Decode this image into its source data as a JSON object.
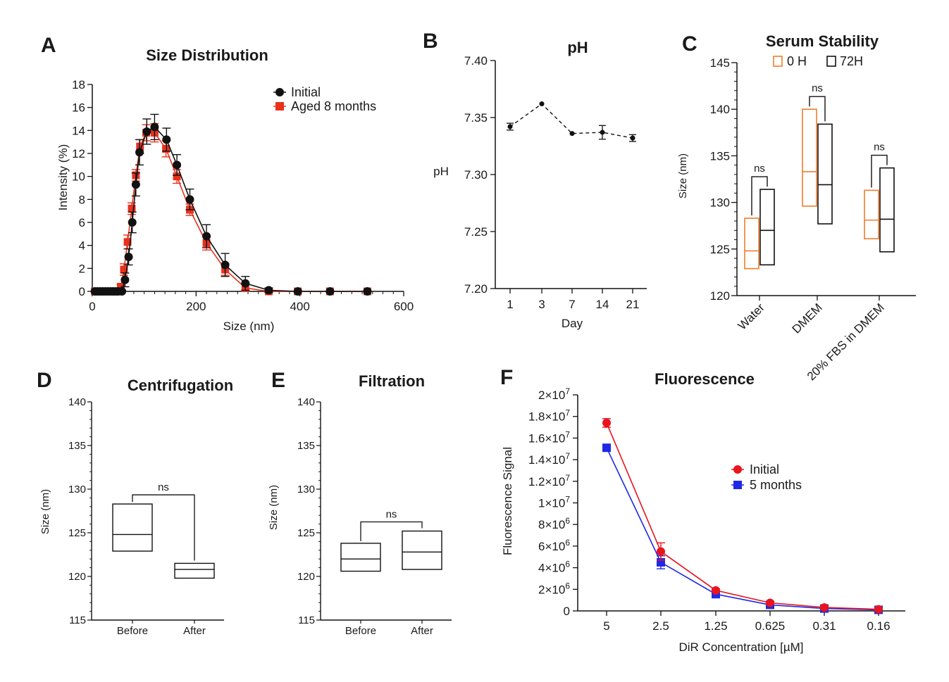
{
  "panels": {
    "A": {
      "letter": "A",
      "title": "Size Distribution",
      "xlabel": "Size (nm)",
      "ylabel": "Intensity (%)"
    },
    "B": {
      "letter": "B",
      "title": "pH",
      "xlabel": "Day",
      "ylabel": "pH"
    },
    "C": {
      "letter": "C",
      "title": "Serum Stability",
      "xlabel": "",
      "ylabel": "Size (nm)"
    },
    "D": {
      "letter": "D",
      "title": "Centrifugation",
      "xlabel": "",
      "ylabel": "Size (nm)"
    },
    "E": {
      "letter": "E",
      "title": "Filtration",
      "xlabel": "",
      "ylabel": "Size (nm)"
    },
    "F": {
      "letter": "F",
      "title": "Fluorescence",
      "xlabel": "DiR Concentration [µM]",
      "ylabel": "Fluorescence Signal"
    }
  },
  "colors": {
    "black": "#111111",
    "red": "#e8321e",
    "orange": "#f07d2c",
    "fl_red": "#e8141e",
    "fl_blue": "#1e28e6"
  },
  "chart_data": [
    {
      "id": "A",
      "type": "line",
      "title": "Size Distribution",
      "xlabel": "Size (nm)",
      "ylabel": "Intensity (%)",
      "xlim": [
        0,
        600
      ],
      "ylim": [
        0,
        18
      ],
      "xticks": [
        0,
        200,
        400,
        600
      ],
      "yticks": [
        0,
        2,
        4,
        6,
        8,
        10,
        12,
        14,
        16,
        18
      ],
      "legend": "top-right",
      "series": [
        {
          "name": "Initial",
          "marker": "circle",
          "x": [
            5,
            10,
            15,
            20,
            25,
            30,
            35,
            40,
            45,
            50,
            57,
            63,
            70,
            77,
            84,
            91,
            105,
            120,
            143,
            163,
            188,
            220,
            256,
            295,
            340,
            396,
            458,
            530
          ],
          "y": [
            0,
            0,
            0,
            0,
            0,
            0,
            0,
            0,
            0,
            0,
            0,
            1,
            3,
            6,
            9.3,
            12.1,
            13.9,
            14.3,
            13.2,
            11,
            8,
            4.8,
            2.3,
            0.7,
            0.1,
            0,
            0,
            0
          ],
          "err": [
            0,
            0,
            0,
            0,
            0,
            0,
            0,
            0,
            0,
            0,
            0.1,
            0.6,
            0.7,
            0.9,
            1,
            1.1,
            1.1,
            1.1,
            1,
            0.9,
            0.9,
            1,
            1,
            0.6,
            0.2,
            0,
            0,
            0
          ]
        },
        {
          "name": "Aged 8 months",
          "marker": "square",
          "x": [
            5,
            10,
            15,
            20,
            25,
            30,
            35,
            40,
            45,
            50,
            55,
            61,
            68,
            76,
            84,
            92,
            104,
            120,
            142,
            163,
            188,
            220,
            256,
            295,
            340,
            396,
            458,
            530
          ],
          "y": [
            0,
            0,
            0,
            0,
            0,
            0,
            0,
            0,
            0,
            0,
            0.4,
            1.9,
            4.3,
            7.2,
            10.1,
            12.6,
            13.8,
            13.8,
            12.4,
            10,
            7.1,
            4.2,
            1.9,
            0.3,
            0,
            0,
            0,
            0
          ],
          "err": [
            0,
            0,
            0,
            0,
            0,
            0,
            0,
            0,
            0,
            0,
            0.2,
            0.5,
            0.6,
            0.5,
            0.5,
            0.6,
            0.7,
            0.8,
            0.7,
            0.6,
            0.5,
            0.6,
            0.5,
            0.3,
            0,
            0,
            0,
            0
          ]
        }
      ]
    },
    {
      "id": "B",
      "type": "line",
      "title": "pH",
      "xlabel": "Day",
      "ylabel": "pH",
      "categories": [
        "1",
        "3",
        "7",
        "14",
        "21"
      ],
      "ylim": [
        7.2,
        7.4
      ],
      "yticks": [
        "7.20",
        "7.25",
        "7.30",
        "7.35",
        "7.40"
      ],
      "series": [
        {
          "values": [
            7.342,
            7.362,
            7.336,
            7.337,
            7.332
          ],
          "err": [
            0.003,
            0,
            0,
            0.006,
            0.003
          ]
        }
      ]
    },
    {
      "id": "C",
      "type": "box",
      "title": "Serum Stability",
      "ylabel": "Size (nm)",
      "categories": [
        "Water",
        "DMEM",
        "20% FBS in DMEM"
      ],
      "ylim": [
        120,
        145
      ],
      "yticks": [
        120,
        125,
        130,
        135,
        140,
        145
      ],
      "legend": "top",
      "series": [
        {
          "name": "0 H",
          "color": "orange",
          "boxes": [
            {
              "low": 122.9,
              "mid": 124.8,
              "high": 128.3
            },
            {
              "low": 129.6,
              "mid": 133.3,
              "high": 140.0
            },
            {
              "low": 126.1,
              "mid": 128.1,
              "high": 131.3
            }
          ]
        },
        {
          "name": "72H",
          "color": "black",
          "boxes": [
            {
              "low": 123.3,
              "mid": 127.0,
              "high": 131.4
            },
            {
              "low": 127.7,
              "mid": 131.9,
              "high": 138.4
            },
            {
              "low": 124.7,
              "mid": 128.2,
              "high": 133.7
            }
          ]
        }
      ],
      "brackets": [
        {
          "label": "ns"
        },
        {
          "label": "ns"
        },
        {
          "label": "ns"
        }
      ]
    },
    {
      "id": "D",
      "type": "box",
      "title": "Centrifugation",
      "ylabel": "Size (nm)",
      "categories": [
        "Before",
        "After"
      ],
      "ylim": [
        115,
        140
      ],
      "yticks": [
        115,
        120,
        125,
        130,
        135,
        140
      ],
      "boxes": [
        {
          "low": 122.9,
          "mid": 124.8,
          "high": 128.3
        },
        {
          "low": 119.8,
          "mid": 120.8,
          "high": 121.5
        }
      ],
      "brackets": [
        {
          "label": "ns"
        }
      ]
    },
    {
      "id": "E",
      "type": "box",
      "title": "Filtration",
      "ylabel": "Size (nm)",
      "categories": [
        "Before",
        "After"
      ],
      "ylim": [
        115,
        140
      ],
      "yticks": [
        115,
        120,
        125,
        130,
        135,
        140
      ],
      "boxes": [
        {
          "low": 120.6,
          "mid": 122.0,
          "high": 123.8
        },
        {
          "low": 120.8,
          "mid": 122.8,
          "high": 125.2
        }
      ],
      "brackets": [
        {
          "label": "ns"
        }
      ]
    },
    {
      "id": "F",
      "type": "line",
      "title": "Fluorescence",
      "xlabel": "DiR Concentration [µM]",
      "ylabel": "Fluorescence Signal",
      "categories": [
        "5",
        "2.5",
        "1.25",
        "0.625",
        "0.31",
        "0.16"
      ],
      "ylim": [
        0,
        20000000
      ],
      "ytick_labels": [
        {
          "v": 0,
          "m": "0",
          "e": ""
        },
        {
          "v": 2000000,
          "m": "2×10",
          "e": "6"
        },
        {
          "v": 4000000,
          "m": "4×10",
          "e": "6"
        },
        {
          "v": 6000000,
          "m": "6×10",
          "e": "6"
        },
        {
          "v": 8000000,
          "m": "8×10",
          "e": "6"
        },
        {
          "v": 10000000,
          "m": "1×10",
          "e": "7"
        },
        {
          "v": 12000000,
          "m": "1.2×10",
          "e": "7"
        },
        {
          "v": 14000000,
          "m": "1.4×10",
          "e": "7"
        },
        {
          "v": 16000000,
          "m": "1.6×10",
          "e": "7"
        },
        {
          "v": 18000000,
          "m": "1.8×10",
          "e": "7"
        },
        {
          "v": 20000000,
          "m": "2×10",
          "e": "7"
        }
      ],
      "legend": "right",
      "series": [
        {
          "name": "Initial",
          "marker": "circle",
          "color": "fl_red",
          "values": [
            17400000,
            5500000,
            1900000,
            750000,
            320000,
            150000
          ],
          "err": [
            400000,
            800000,
            150000,
            80000,
            50000,
            30000
          ]
        },
        {
          "name": "5 months",
          "marker": "square",
          "color": "fl_blue",
          "values": [
            15100000,
            4500000,
            1550000,
            560000,
            220000,
            100000
          ],
          "err": [
            200000,
            600000,
            100000,
            60000,
            40000,
            20000
          ]
        }
      ]
    }
  ]
}
